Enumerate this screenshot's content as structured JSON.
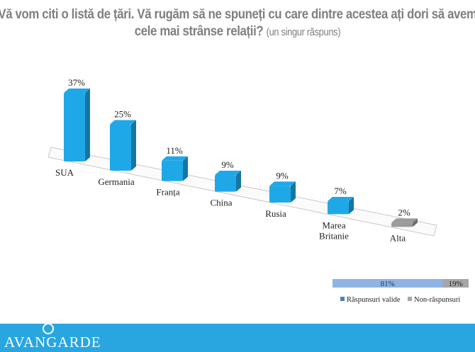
{
  "title": {
    "main": "Vă vom citi o listă de țări. Vă rugăm să ne spuneți cu care dintre acestea ați dori să avem cele mai strânse relații?",
    "sub": "(un singur răspuns)",
    "line1": "Vă vom citi o listă de țări. Vă rugăm să ne spuneți cu care dintre acestea aț",
    "line2": "dori să avem cele mai strânse relații?"
  },
  "chart_data": [
    {
      "type": "bar",
      "style": "3d",
      "categories": [
        "SUA",
        "Germania",
        "Franța",
        "China",
        "Rusia",
        "Marea Britanie",
        "Alta"
      ],
      "values": [
        37,
        25,
        11,
        9,
        9,
        7,
        2
      ],
      "labels": [
        "37%",
        "25%",
        "11%",
        "9%",
        "9%",
        "7%",
        "2%"
      ],
      "colors": [
        "#1fa8e8",
        "#1fa8e8",
        "#1fa8e8",
        "#1fa8e8",
        "#1fa8e8",
        "#1fa8e8",
        "#9a9a9a"
      ],
      "unit": "%",
      "grid": false
    },
    {
      "type": "bar",
      "orientation": "horizontal",
      "stacked": true,
      "series": [
        {
          "name": "Răspunsuri valide",
          "value": 81,
          "label": "81%",
          "color": "#8db4e2"
        },
        {
          "name": "Non-răspunsuri",
          "value": 19,
          "label": "19%",
          "color": "#a6a6a6"
        }
      ],
      "legend": "bottom"
    }
  ],
  "footer": {
    "brand": "AVANGARDE",
    "color": "#29a6e0"
  }
}
